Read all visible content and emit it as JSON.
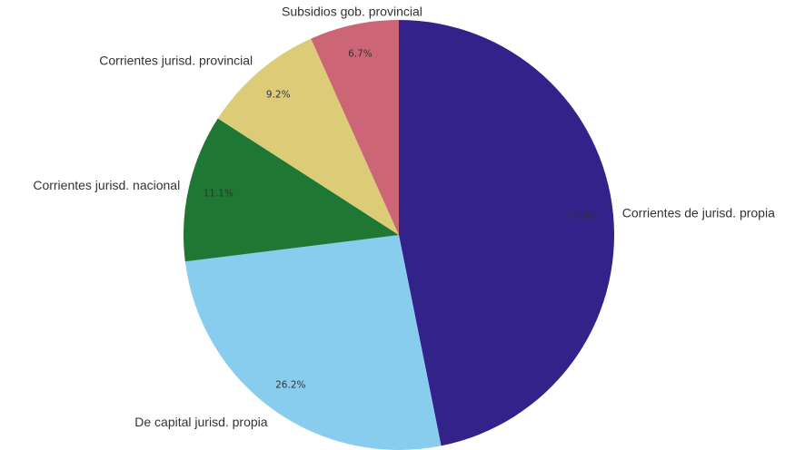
{
  "chart_data": {
    "type": "pie",
    "title": "",
    "start_angle_deg": 0,
    "direction": "clockwise",
    "slices": [
      {
        "label": "Corrientes de jurisd. propia",
        "value": 46.9,
        "value_label": "46.9%",
        "color": "#33228a"
      },
      {
        "label": "De capital jurisd. propia",
        "value": 26.2,
        "value_label": "26.2%",
        "color": "#88ccee"
      },
      {
        "label": "Corrientes jurisd. nacional",
        "value": 11.1,
        "value_label": "11.1%",
        "color": "#1e7834"
      },
      {
        "label": "Corrientes jurisd. provincial",
        "value": 9.2,
        "value_label": "9.2%",
        "color": "#ddcc77"
      },
      {
        "label": "Subsidios gob. provincial",
        "value": 6.7,
        "value_label": "6.7%",
        "color": "#cc6677"
      }
    ]
  }
}
